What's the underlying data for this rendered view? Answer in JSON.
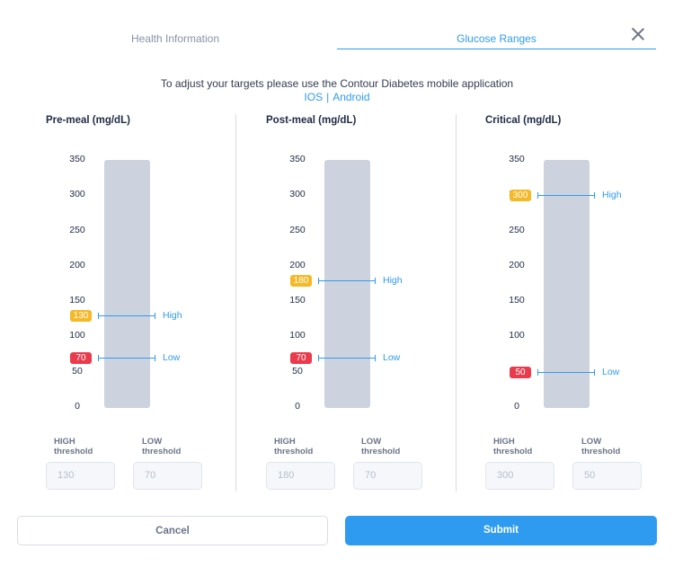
{
  "tabs": {
    "health": "Health Information",
    "glucose": "Glucose Ranges"
  },
  "info": {
    "line": "To adjust your targets please use the Contour Diabetes mobile application",
    "ios": "IOS",
    "separator": "|",
    "android": "Android"
  },
  "scale_ticks": [
    "350",
    "300",
    "250",
    "200",
    "150",
    "100",
    "50",
    "0"
  ],
  "columns": [
    {
      "title": "Pre-meal (mg/dL)",
      "high": 130,
      "low": 70,
      "high_text": "130",
      "low_text": "70",
      "high_label": "High",
      "low_label": "Low"
    },
    {
      "title": "Post-meal (mg/dL)",
      "high": 180,
      "low": 70,
      "high_text": "180",
      "low_text": "70",
      "high_label": "High",
      "low_label": "Low"
    },
    {
      "title": "Critical (mg/dL)",
      "high": 300,
      "low": 50,
      "high_text": "300",
      "low_text": "50",
      "high_label": "High",
      "low_label": "Low"
    }
  ],
  "threshold_labels": {
    "high_line1": "HIGH",
    "high_line2": "threshold",
    "low_line1": "LOW",
    "low_line2": "threshold"
  },
  "buttons": {
    "cancel": "Cancel",
    "submit": "Submit"
  },
  "colors": {
    "accent": "#2f9bf0",
    "high_badge": "#f5b928",
    "low_badge": "#e93b4c",
    "bar": "#ccd2de"
  }
}
